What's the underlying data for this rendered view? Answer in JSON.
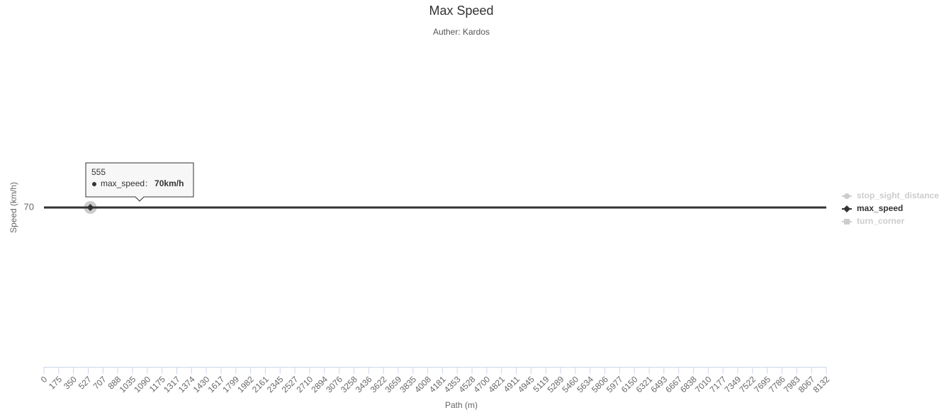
{
  "chart_data": {
    "type": "line",
    "title": "Max Speed",
    "subtitle": "Auther: Kardos",
    "x_label": "Path (m)",
    "y_label": "Speed (km/h)",
    "categories": [
      "0",
      "175",
      "350",
      "527",
      "707",
      "888",
      "1035",
      "1090",
      "1175",
      "1317",
      "1374",
      "1430",
      "1617",
      "1799",
      "1982",
      "2161",
      "2345",
      "2527",
      "2710",
      "2894",
      "3076",
      "3258",
      "3436",
      "3622",
      "3659",
      "3835",
      "4008",
      "4181",
      "4353",
      "4528",
      "4700",
      "4821",
      "4911",
      "4945",
      "5119",
      "5289",
      "5460",
      "5634",
      "5806",
      "5977",
      "6150",
      "6321",
      "6493",
      "6667",
      "6838",
      "7010",
      "7177",
      "7349",
      "7522",
      "7695",
      "7786",
      "7983",
      "8067",
      "8132"
    ],
    "series": [
      {
        "name": "stop_sight_distance",
        "color": "#cccccc",
        "visible": false,
        "marker": "circle"
      },
      {
        "name": "max_speed",
        "color": "#333333",
        "visible": true,
        "marker": "diamond",
        "values": [
          70,
          70,
          70,
          70,
          70,
          70,
          70,
          70,
          70,
          70,
          70,
          70,
          70,
          70,
          70,
          70,
          70,
          70,
          70,
          70,
          70,
          70,
          70,
          70,
          70,
          70,
          70,
          70,
          70,
          70,
          70,
          70,
          70,
          70,
          70,
          70,
          70,
          70,
          70,
          70,
          70,
          70,
          70,
          70,
          70,
          70,
          70,
          70,
          70,
          70,
          70,
          70,
          70,
          70
        ]
      },
      {
        "name": "turn_corner",
        "color": "#cccccc",
        "visible": false,
        "marker": "square"
      }
    ],
    "ylim": [
      69,
      71
    ],
    "yticks": [
      70
    ],
    "legend": "right",
    "tooltip": {
      "category": "555",
      "series": 1,
      "value": 70,
      "value_label": "70km/h"
    }
  }
}
